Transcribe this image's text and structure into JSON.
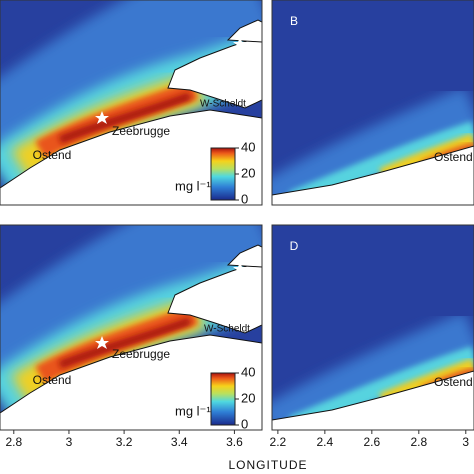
{
  "panels": [
    {
      "annotations": [
        "W-Scheldt",
        "Zeebrugge",
        "Ostend"
      ],
      "axis": 0,
      "colorbar": true
    },
    {
      "label": "B",
      "annotations": [
        "Ostend"
      ],
      "axis": 1
    },
    {
      "annotations": [
        "W-Scheldt",
        "Zeebrugge",
        "Ostend"
      ],
      "axis": 0,
      "colorbar": true
    },
    {
      "label": "D",
      "annotations": [
        "Ostend"
      ],
      "axis": 1
    }
  ],
  "x_axes": [
    {
      "xlim": [
        2.75,
        3.7
      ],
      "xticks": [
        2.8,
        3,
        3.2,
        3.4,
        3.6
      ]
    },
    {
      "xlim": [
        2.175,
        3.035
      ],
      "xticks": [
        2.2,
        2.4,
        2.6,
        2.8,
        3
      ]
    }
  ],
  "xlabel": "LONGITUDE",
  "colorbar": {
    "unit": "mg l⁻¹",
    "lim": [
      0,
      40
    ],
    "ticks": [
      0,
      20,
      40
    ]
  }
}
